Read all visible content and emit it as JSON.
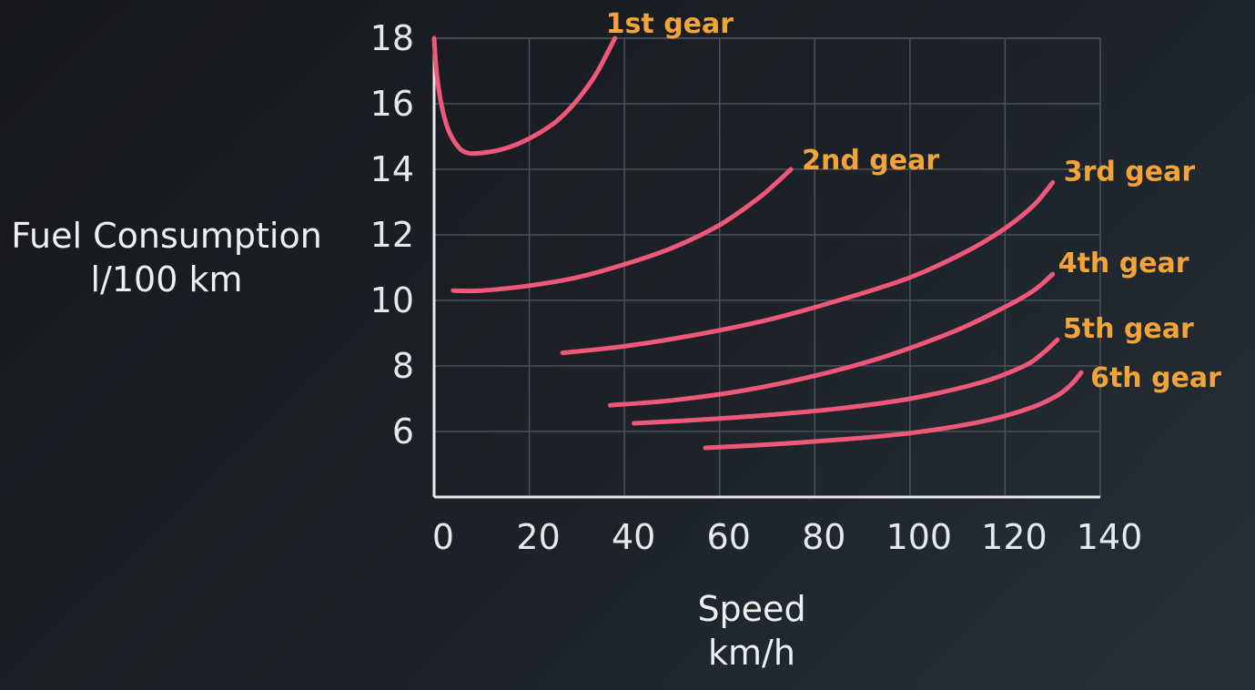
{
  "chart_data": {
    "type": "line",
    "xlabel": "Speed\nkm/h",
    "ylabel": "Fuel Consumption\nl/100 km",
    "xlim": [
      0,
      140
    ],
    "ylim": [
      4,
      18
    ],
    "x_ticks": [
      "0",
      "20",
      "40",
      "60",
      "80",
      "100",
      "120",
      "140"
    ],
    "y_ticks": [
      "6",
      "8",
      "10",
      "12",
      "14",
      "16",
      "18"
    ],
    "grid": true,
    "line_color": "#f0587a",
    "label_color": "#f2a33a",
    "series": [
      {
        "name": "1st gear",
        "x": [
          0,
          0.5,
          1.5,
          3,
          5,
          7,
          10,
          14,
          18,
          22,
          26,
          30,
          34,
          38
        ],
        "y": [
          18,
          17,
          16,
          15.2,
          14.7,
          14.5,
          14.5,
          14.6,
          14.8,
          15.1,
          15.5,
          16.1,
          16.9,
          18
        ]
      },
      {
        "name": "2nd gear",
        "x": [
          4,
          10,
          20,
          30,
          40,
          50,
          60,
          68,
          72,
          75
        ],
        "y": [
          10.3,
          10.3,
          10.45,
          10.7,
          11.1,
          11.6,
          12.3,
          13.1,
          13.6,
          14
        ]
      },
      {
        "name": "3rd gear",
        "x": [
          27,
          40,
          55,
          70,
          85,
          100,
          112,
          120,
          126,
          130
        ],
        "y": [
          8.4,
          8.6,
          8.95,
          9.4,
          10,
          10.7,
          11.5,
          12.2,
          12.9,
          13.6
        ]
      },
      {
        "name": "4th gear",
        "x": [
          37,
          50,
          65,
          80,
          95,
          110,
          120,
          126,
          130
        ],
        "y": [
          6.8,
          6.95,
          7.25,
          7.7,
          8.3,
          9.1,
          9.8,
          10.3,
          10.8
        ]
      },
      {
        "name": "5th gear",
        "x": [
          42,
          55,
          70,
          85,
          100,
          115,
          124,
          128,
          131
        ],
        "y": [
          6.25,
          6.35,
          6.5,
          6.7,
          7,
          7.5,
          8,
          8.4,
          8.8
        ]
      },
      {
        "name": "6th gear",
        "x": [
          57,
          70,
          85,
          100,
          115,
          125,
          131,
          134,
          136
        ],
        "y": [
          5.5,
          5.6,
          5.75,
          5.95,
          6.3,
          6.7,
          7.1,
          7.45,
          7.8
        ]
      }
    ]
  }
}
